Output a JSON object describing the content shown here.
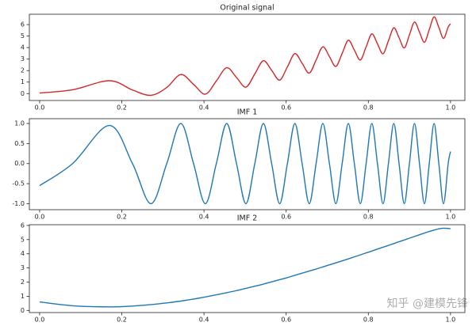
{
  "chart_data": [
    {
      "type": "line",
      "title": "Original signal",
      "color": "#d62728",
      "x": [
        0,
        0.0802,
        0.1696,
        0.226,
        0.2709,
        0.3094,
        0.3436,
        0.3746,
        0.4033,
        0.4301,
        0.4553,
        0.4792,
        0.502,
        0.5237,
        0.5446,
        0.5647,
        0.5842,
        0.603,
        0.6212,
        0.6389,
        0.6562,
        0.6729,
        0.6893,
        0.7053,
        0.721,
        0.7363,
        0.7513,
        0.766,
        0.7805,
        0.7946,
        0.8085,
        0.8222,
        0.8357,
        0.8489,
        0.862,
        0.8748,
        0.8875,
        0.9,
        0.9123,
        0.9245,
        0.9365,
        0.9483,
        0.96,
        0.9716,
        0.983,
        0.9943,
        1.0
      ],
      "values": [
        0.05,
        0.33,
        1.12,
        0.31,
        -0.15,
        0.53,
        1.66,
        0.8,
        -0.05,
        1.1,
        2.25,
        1.4,
        0.56,
        1.71,
        2.86,
        2.02,
        1.17,
        2.32,
        3.48,
        2.63,
        1.78,
        2.92,
        4.07,
        3.22,
        2.36,
        3.5,
        4.64,
        3.78,
        2.92,
        4.06,
        5.19,
        4.33,
        3.46,
        4.59,
        5.72,
        4.85,
        3.97,
        5.1,
        6.22,
        5.34,
        4.46,
        5.57,
        6.67,
        5.76,
        4.8,
        5.79,
        6.07
      ],
      "xlim": [
        -0.025,
        1.035
      ],
      "xticks": [
        {
          "value": 0,
          "label": "0.0"
        },
        0.2,
        0.4,
        0.6,
        0.8,
        {
          "value": 1,
          "label": "1.0"
        }
      ],
      "ylim": [
        -0.6,
        6.9
      ],
      "yticks": [
        0,
        1,
        2,
        3,
        4,
        5,
        6
      ]
    },
    {
      "type": "line",
      "title": "IMF 1",
      "color": "#1f77b4",
      "x": [
        0,
        0.0802,
        0.1696,
        0.226,
        0.2709,
        0.3094,
        0.3436,
        0.3746,
        0.4033,
        0.4301,
        0.4553,
        0.4792,
        0.502,
        0.5237,
        0.5446,
        0.5647,
        0.5842,
        0.603,
        0.6212,
        0.6389,
        0.6562,
        0.6729,
        0.6893,
        0.7053,
        0.721,
        0.7363,
        0.7513,
        0.766,
        0.7805,
        0.7946,
        0.8085,
        0.8222,
        0.8357,
        0.8489,
        0.862,
        0.8748,
        0.8875,
        0.9,
        0.9123,
        0.9245,
        0.9365,
        0.9483,
        0.96,
        0.9716,
        0.983,
        0.9943,
        1.0
      ],
      "values": [
        -0.55,
        0,
        0.95,
        0,
        -1,
        0,
        1,
        0,
        -1,
        0,
        1,
        0,
        -1,
        0,
        1,
        0,
        -1,
        0,
        1,
        0,
        -1,
        0,
        1,
        0,
        -1,
        0,
        1,
        0,
        -1,
        0,
        1,
        0,
        -1,
        0,
        1,
        0,
        -1,
        0,
        1,
        0,
        -1,
        0,
        1,
        0,
        -1,
        0,
        0.3
      ],
      "xlim": [
        -0.025,
        1.035
      ],
      "xticks": [
        {
          "value": 0,
          "label": "0.0"
        },
        0.2,
        0.4,
        0.6,
        0.8,
        {
          "value": 1,
          "label": "1.0"
        }
      ],
      "ylim": [
        -1.15,
        1.12
      ],
      "yticks": [
        {
          "value": -1,
          "label": "-1.0"
        },
        -0.5,
        {
          "value": 0,
          "label": "0.0"
        },
        0.5,
        {
          "value": 1,
          "label": "1.0"
        }
      ]
    },
    {
      "type": "line",
      "title": "IMF 2",
      "color": "#1f77b4",
      "x": [
        0,
        0.0802,
        0.1696,
        0.226,
        0.2709,
        0.3094,
        0.3436,
        0.3746,
        0.4033,
        0.4301,
        0.4553,
        0.4792,
        0.502,
        0.5237,
        0.5446,
        0.5647,
        0.5842,
        0.603,
        0.6212,
        0.6389,
        0.6562,
        0.6729,
        0.6893,
        0.7053,
        0.721,
        0.7363,
        0.7513,
        0.766,
        0.7805,
        0.7946,
        0.8085,
        0.8222,
        0.8357,
        0.8489,
        0.862,
        0.8748,
        0.8875,
        0.9,
        0.9123,
        0.9245,
        0.9365,
        0.9483,
        0.96,
        0.9716,
        0.983,
        0.9943,
        1.0
      ],
      "values": [
        0.6,
        0.33,
        0.25,
        0.31,
        0.41,
        0.53,
        0.66,
        0.8,
        0.95,
        1.1,
        1.25,
        1.4,
        1.56,
        1.71,
        1.86,
        2.02,
        2.17,
        2.32,
        2.48,
        2.63,
        2.78,
        2.92,
        3.07,
        3.22,
        3.36,
        3.5,
        3.64,
        3.78,
        3.92,
        4.06,
        4.19,
        4.33,
        4.46,
        4.59,
        4.72,
        4.85,
        4.97,
        5.1,
        5.22,
        5.34,
        5.46,
        5.57,
        5.67,
        5.76,
        5.8,
        5.79,
        5.77
      ],
      "xlim": [
        -0.025,
        1.035
      ],
      "xticks": [
        {
          "value": 0,
          "label": "0.0"
        },
        0.2,
        0.4,
        0.6,
        0.8,
        {
          "value": 1,
          "label": "1.0"
        }
      ],
      "ylim": [
        -0.15,
        6.05
      ],
      "yticks": [
        0,
        1,
        2,
        3,
        4,
        5,
        6
      ]
    }
  ],
  "watermark": "知乎 @建模先锋"
}
